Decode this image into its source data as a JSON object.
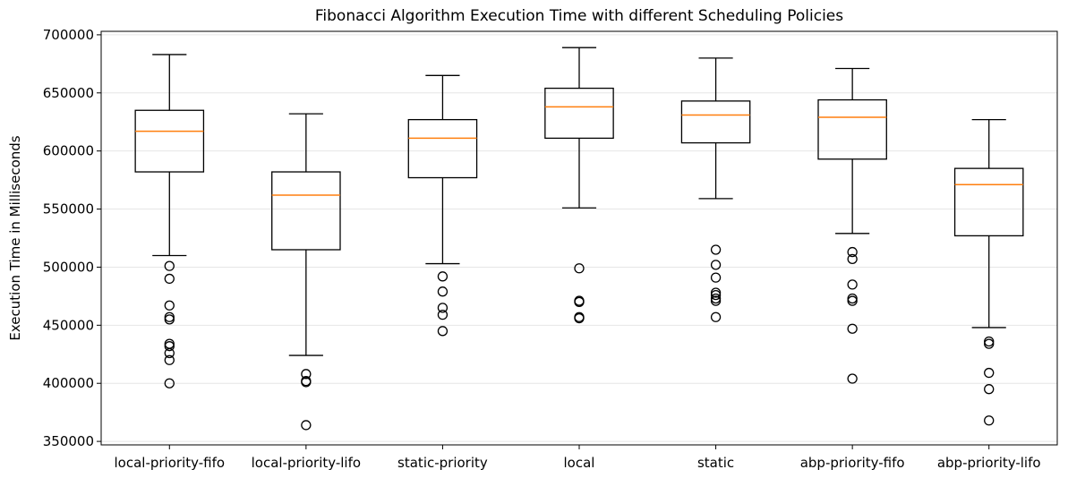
{
  "chart_data": {
    "type": "box",
    "title": "Fibonacci Algorithm Execution Time with different Scheduling Policies",
    "xlabel": "",
    "ylabel": "Execution Time in Milliseconds",
    "ylim": [
      347000,
      703000
    ],
    "yticks": [
      350000,
      400000,
      450000,
      500000,
      550000,
      600000,
      650000,
      700000
    ],
    "ytick_labels": [
      "350000",
      "400000",
      "450000",
      "500000",
      "550000",
      "600000",
      "650000",
      "700000"
    ],
    "grid": "horizontal",
    "colors": {
      "box": "#000000",
      "median": "#ff7f0e",
      "grid": "#e6e6e6"
    },
    "categories": [
      "local-priority-fifo",
      "local-priority-lifo",
      "static-priority",
      "local",
      "static",
      "abp-priority-fifo",
      "abp-priority-lifo"
    ],
    "boxes": [
      {
        "whisker_low": 510000,
        "q1": 582000,
        "median": 617000,
        "q3": 635000,
        "whisker_high": 683000,
        "outliers": [
          501000,
          490000,
          467000,
          457000,
          455000,
          434000,
          432000,
          426000,
          420000,
          400000
        ]
      },
      {
        "whisker_low": 424000,
        "q1": 515000,
        "median": 562000,
        "q3": 582000,
        "whisker_high": 632000,
        "outliers": [
          408000,
          402000,
          401000,
          364000
        ]
      },
      {
        "whisker_low": 503000,
        "q1": 577000,
        "median": 611000,
        "q3": 627000,
        "whisker_high": 665000,
        "outliers": [
          492000,
          479000,
          465000,
          459000,
          445000
        ]
      },
      {
        "whisker_low": 551000,
        "q1": 611000,
        "median": 638000,
        "q3": 654000,
        "whisker_high": 689000,
        "outliers": [
          499000,
          471000,
          470000,
          457000,
          456000
        ]
      },
      {
        "whisker_low": 559000,
        "q1": 607000,
        "median": 631000,
        "q3": 643000,
        "whisker_high": 680000,
        "outliers": [
          515000,
          502000,
          491000,
          478000,
          476000,
          473000,
          471000,
          457000
        ]
      },
      {
        "whisker_low": 529000,
        "q1": 593000,
        "median": 629000,
        "q3": 644000,
        "whisker_high": 671000,
        "outliers": [
          513000,
          507000,
          485000,
          473000,
          471000,
          447000,
          404000
        ]
      },
      {
        "whisker_low": 448000,
        "q1": 527000,
        "median": 571000,
        "q3": 585000,
        "whisker_high": 627000,
        "outliers": [
          436000,
          434000,
          409000,
          395000,
          368000
        ]
      }
    ]
  }
}
